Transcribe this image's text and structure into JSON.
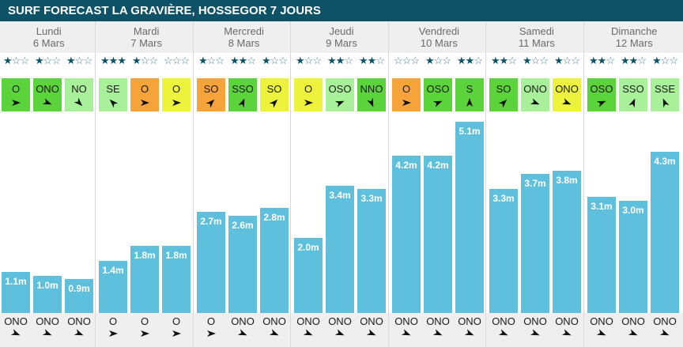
{
  "header": {
    "title": "SURF FORECAST LA GRAVIÈRE, HOSSEGOR 7 JOURS"
  },
  "days": [
    {
      "name": "Lundi",
      "date": "6 Mars"
    },
    {
      "name": "Mardi",
      "date": "7 Mars"
    },
    {
      "name": "Mercredi",
      "date": "8 Mars"
    },
    {
      "name": "Jeudi",
      "date": "9 Mars"
    },
    {
      "name": "Vendredi",
      "date": "10 Mars"
    },
    {
      "name": "Samedi",
      "date": "11 Mars"
    },
    {
      "name": "Dimanche",
      "date": "12 Mars"
    }
  ],
  "colors": {
    "header_bg": "#0e5267",
    "bar": "#5ec0dd",
    "wind_green": "#5bd33a",
    "wind_lightgreen": "#a9f09a",
    "wind_yellow": "#ecf33a",
    "wind_orange": "#f6a43a"
  },
  "chart_data": {
    "type": "bar",
    "unit": "m",
    "ylim": [
      0,
      5.1
    ],
    "values": [
      1.1,
      1.0,
      0.9,
      1.4,
      1.8,
      1.8,
      2.7,
      2.6,
      2.8,
      2.0,
      3.4,
      3.3,
      4.2,
      4.2,
      5.1,
      3.3,
      3.7,
      3.8,
      3.1,
      3.0,
      4.3
    ],
    "labels": [
      "1.1m",
      "1.0m",
      "0.9m",
      "1.4m",
      "1.8m",
      "1.8m",
      "2.7m",
      "2.6m",
      "2.8m",
      "2.0m",
      "3.4m",
      "3.3m",
      "4.2m",
      "4.2m",
      "5.1m",
      "3.3m",
      "3.7m",
      "3.8m",
      "3.1m",
      "3.0m",
      "4.3m"
    ],
    "stars": [
      1,
      1,
      1,
      3,
      1,
      0,
      1,
      2,
      1,
      1,
      2,
      2,
      0,
      1,
      2,
      2,
      1,
      1,
      2,
      2,
      1
    ],
    "wind_dir": [
      "O",
      "ONO",
      "NO",
      "SE",
      "O",
      "O",
      "SO",
      "SSO",
      "SO",
      "O",
      "OSO",
      "NNO",
      "O",
      "OSO",
      "S",
      "SO",
      "ONO",
      "ONO",
      "OSO",
      "SSO",
      "SSE"
    ],
    "wind_color": [
      "green",
      "green",
      "lightgreen",
      "lightgreen",
      "orange",
      "yellow",
      "orange",
      "green",
      "yellow",
      "yellow",
      "lightgreen",
      "green",
      "orange",
      "green",
      "green",
      "green",
      "lightgreen",
      "yellow",
      "green",
      "lightgreen",
      "lightgreen"
    ],
    "swell_dir": [
      "ONO",
      "ONO",
      "ONO",
      "O",
      "O",
      "O",
      "O",
      "ONO",
      "ONO",
      "ONO",
      "ONO",
      "ONO",
      "ONO",
      "ONO",
      "ONO",
      "ONO",
      "ONO",
      "ONO",
      "ONO",
      "ONO",
      "ONO"
    ]
  }
}
